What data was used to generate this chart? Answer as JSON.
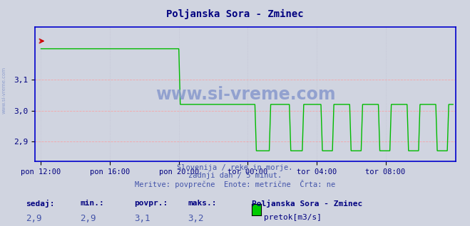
{
  "title": "Poljanska Sora - Zminec",
  "title_color": "#000080",
  "bg_color": "#d0d4e0",
  "plot_bg_color": "#d0d4e0",
  "line_color": "#00bb00",
  "axis_color": "#0000cc",
  "grid_color_h": "#ff9999",
  "grid_color_v": "#bbbbcc",
  "tick_label_color": "#000080",
  "yticks": [
    2.9,
    3.0,
    3.1
  ],
  "ymin": 2.835,
  "ymax": 3.27,
  "xtick_labels": [
    "pon 12:00",
    "pon 16:00",
    "pon 20:00",
    "tor 00:00",
    "tor 04:00",
    "tor 08:00"
  ],
  "xtick_positions": [
    0,
    48,
    96,
    144,
    192,
    240
  ],
  "total_points": 288,
  "subtitle_lines": [
    "Slovenija / reke in morje.",
    "zadnji dan / 5 minut.",
    "Meritve: povprečne  Enote: metrične  Črta: ne"
  ],
  "subtitle_color": "#4455aa",
  "footer_labels": [
    "sedaj:",
    "min.:",
    "povpr.:",
    "maks.:"
  ],
  "footer_values": [
    "2,9",
    "2,9",
    "3,1",
    "3,2"
  ],
  "footer_station": "Poljanska Sora - Zminec",
  "footer_legend": "pretok[m3/s]",
  "footer_color": "#000080",
  "footer_value_color": "#4455aa",
  "legend_color": "#00cc00",
  "watermark": "www.si-vreme.com",
  "watermark_color": "#8899cc",
  "sidewatermark": "www.si-vreme.com",
  "sidewatermark_color": "#8899cc"
}
